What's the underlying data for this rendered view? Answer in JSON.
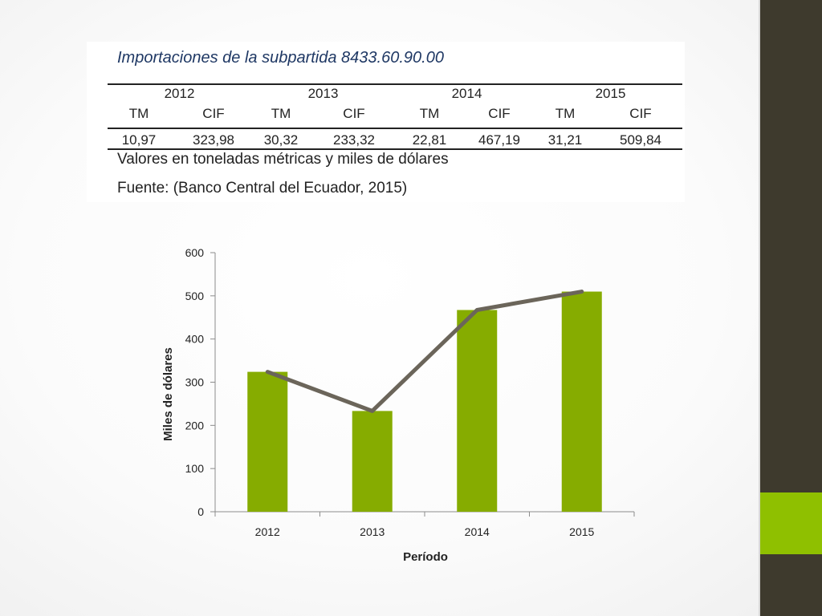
{
  "table": {
    "title": "Importaciones de la subpartida 8433.60.90.00",
    "years": [
      "2012",
      "2013",
      "2014",
      "2015"
    ],
    "subheaders": [
      "TM",
      "CIF",
      "TM",
      "CIF",
      "TM",
      "CIF",
      "TM",
      "CIF"
    ],
    "values": [
      "10,97",
      "323,98",
      "30,32",
      "233,32",
      "22,81",
      "467,19",
      "31,21",
      "509,84"
    ],
    "note": "Valores en toneladas métricas y miles de dólares",
    "source": "Fuente: (Banco Central del Ecuador, 2015)"
  },
  "chart_data": {
    "type": "bar",
    "categories": [
      "2012",
      "2013",
      "2014",
      "2015"
    ],
    "series": [
      {
        "type": "bar",
        "values": [
          323.98,
          233.32,
          467.19,
          509.84
        ],
        "color": "#86ac00"
      },
      {
        "type": "line",
        "values": [
          323.98,
          233.32,
          467.19,
          509.84
        ],
        "color": "#6b655a"
      }
    ],
    "xlabel": "Período",
    "ylabel": "Miles de dólares",
    "ylim": [
      0,
      600
    ],
    "yticks": [
      "0",
      "100",
      "200",
      "300",
      "400",
      "500",
      "600"
    ],
    "grid": false,
    "legend": "none"
  },
  "theme": {
    "sidebar": "#3e3a2d",
    "accent": "#8fc000"
  }
}
